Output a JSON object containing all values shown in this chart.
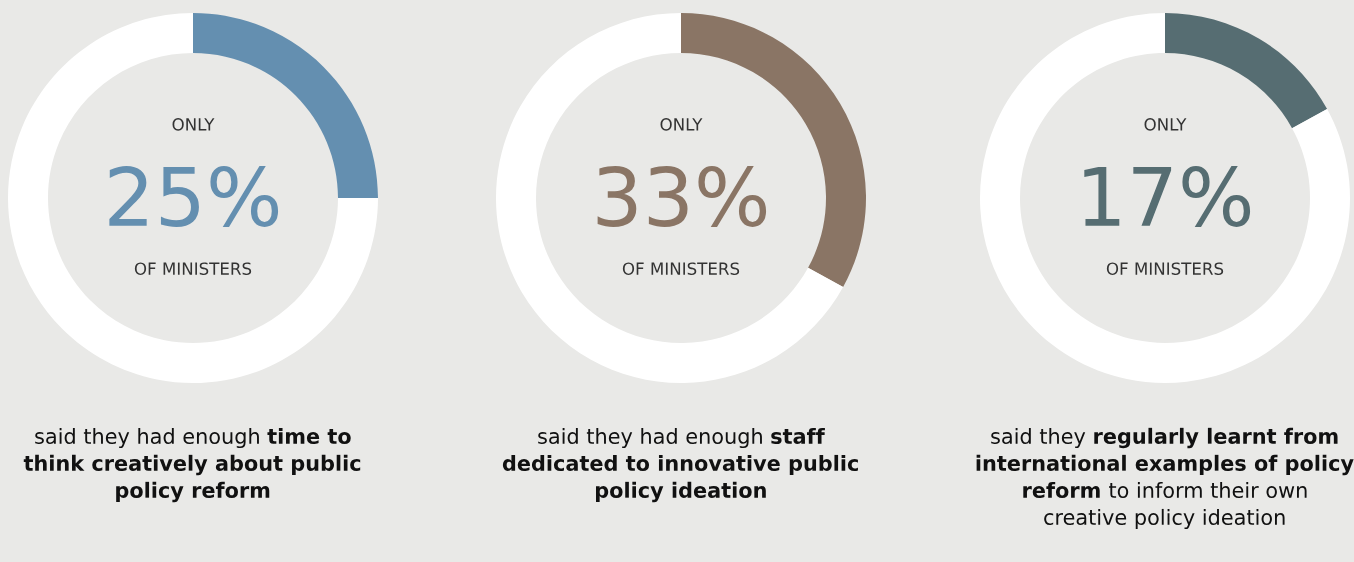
{
  "chart_data": [
    {
      "type": "donut",
      "categories": [
        null,
        null
      ],
      "values": [
        25,
        75
      ],
      "colors": [
        "#648fb0",
        "#ffffff"
      ],
      "value_labels": [
        "25%",
        null
      ],
      "annotations": [
        "ONLY",
        "OF MINISTERS",
        "said they had enough",
        "time to think creatively about public policy reform"
      ]
    },
    {
      "type": "donut",
      "categories": [
        null,
        null
      ],
      "values": [
        33,
        67
      ],
      "colors": [
        "#8a7565",
        "#ffffff"
      ],
      "value_labels": [
        "33%",
        null
      ],
      "annotations": [
        "ONLY",
        "OF MINISTERS",
        "said they had enough",
        "staff dedicated to innovative public policy ideation"
      ]
    },
    {
      "type": "donut",
      "categories": [
        null,
        null
      ],
      "values": [
        17,
        83
      ],
      "colors": [
        "#566d72",
        "#ffffff"
      ],
      "value_labels": [
        "17%",
        null
      ],
      "annotations": [
        "ONLY",
        "OF MINISTERS",
        "said they",
        "regularly learnt from international examples of policy reform",
        "to inform their own creative policy ideation"
      ]
    }
  ]
}
